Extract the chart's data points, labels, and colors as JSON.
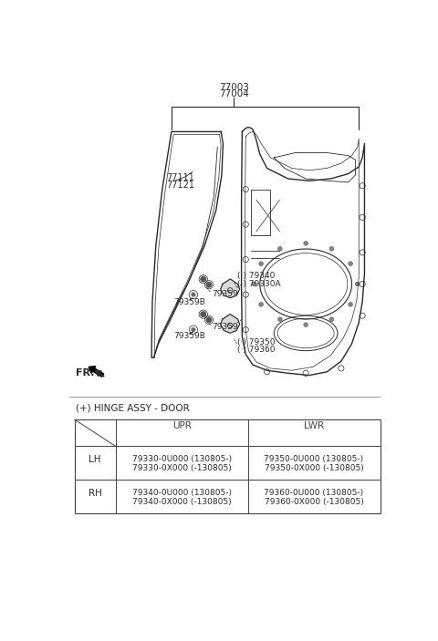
{
  "bg_color": "#ffffff",
  "diagram_line_color": "#2a2a2a",
  "text_color": "#2a2a2a",
  "table_line_color": "#444444",
  "table_title": "(+) HINGE ASSY - DOOR",
  "table_rows": [
    [
      "LH",
      "79330-0U000 (130805-)",
      "79350-0U000 (130805-)"
    ],
    [
      "LH",
      "79330-0X000 (-130805)",
      "79350-0X000 (-130805)"
    ],
    [
      "RH",
      "79340-0U000 (130805-)",
      "79360-0U000 (130805-)"
    ],
    [
      "RH",
      "79340-0X000 (-130805)",
      "79360-0X000 (-130805)"
    ]
  ]
}
